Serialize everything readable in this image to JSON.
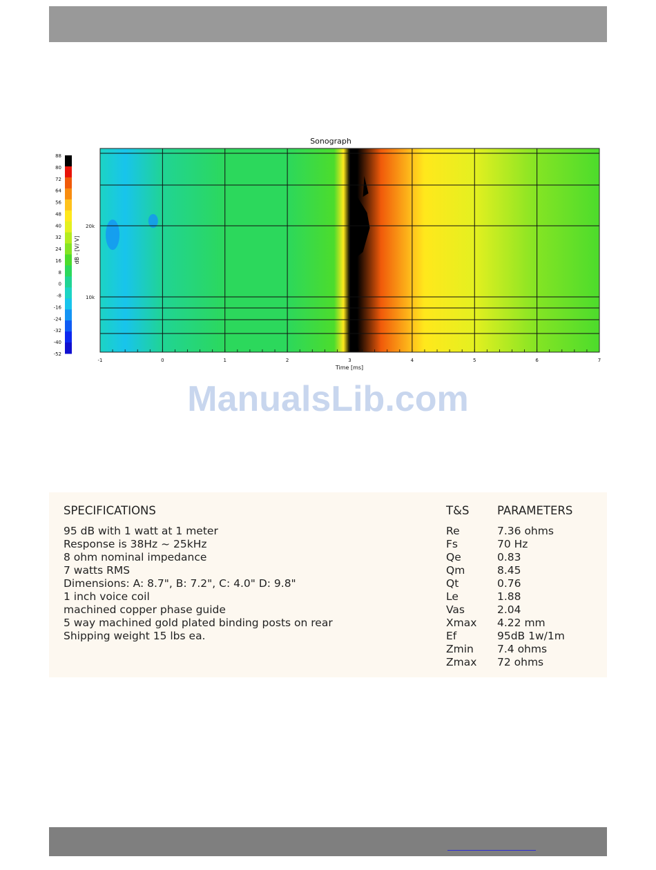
{
  "page": {
    "watermark": "ManualsLib.com"
  },
  "chart_data": {
    "type": "heatmap",
    "title": "Sonograph",
    "xlabel": "Time [ms]",
    "ylabel": "dB - [V/ V]",
    "xlim": [
      -1,
      7
    ],
    "x_ticks": [
      "-1",
      "0",
      "1",
      "2",
      "3",
      "4",
      "5",
      "6",
      "7"
    ],
    "y_ticks": [
      "20k",
      "10k"
    ],
    "colorbar_ticks": [
      "88",
      "80",
      "72",
      "64",
      "56",
      "48",
      "40",
      "32",
      "24",
      "16",
      "8",
      "0",
      "-8",
      "-16",
      "-24",
      "-32",
      "-40",
      "-52"
    ],
    "colorbar_colors": [
      "#000000",
      "#e8140a",
      "#f05a0a",
      "#f88c10",
      "#ffc21c",
      "#ffe81c",
      "#e4f020",
      "#b4ec20",
      "#84e424",
      "#4cdc2c",
      "#2cd85c",
      "#20d494",
      "#1cd4c4",
      "#18c4ec",
      "#1494f4",
      "#105cf4",
      "#0c28f0",
      "#1010d0"
    ],
    "colorscale": [
      "#000000",
      "#e8140a",
      "#f8a010",
      "#ffe81c",
      "#a8ec20",
      "#40dc2c",
      "#20d4a0",
      "#18c4ec",
      "#1470f4"
    ],
    "time_profile": [
      {
        "t": -1.0,
        "v": -14
      },
      {
        "t": -0.6,
        "v": -18
      },
      {
        "t": 0.0,
        "v": -8
      },
      {
        "t": 1.0,
        "v": 2
      },
      {
        "t": 2.0,
        "v": 6
      },
      {
        "t": 2.75,
        "v": 10
      },
      {
        "t": 2.9,
        "v": 40
      },
      {
        "t": 3.0,
        "v": 88
      },
      {
        "t": 3.12,
        "v": 84
      },
      {
        "t": 3.5,
        "v": 66
      },
      {
        "t": 4.0,
        "v": 52
      },
      {
        "t": 4.2,
        "v": 42
      },
      {
        "t": 5.0,
        "v": 32
      },
      {
        "t": 6.0,
        "v": 18
      },
      {
        "t": 7.0,
        "v": 8
      }
    ]
  },
  "specs": {
    "heading": "SPECIFICATIONS",
    "items": [
      "95 dB with 1 watt at 1 meter",
      "Response is 38Hz ~ 25kHz",
      "8 ohm nominal impedance",
      "7 watts RMS",
      "Dimensions: A: 8.7\", B: 7.2\", C: 4.0\"  D: 9.8\"",
      "1 inch voice coil",
      "machined copper phase guide",
      "5 way machined gold plated binding posts on rear",
      "Shipping weight 15 lbs ea."
    ]
  },
  "parameters": {
    "ts_heading": "T&S",
    "heading": "PARAMETERS",
    "rows": [
      {
        "name": "Re",
        "value": "7.36 ohms"
      },
      {
        "name": "Fs",
        "value": "70 Hz"
      },
      {
        "name": "Qe",
        "value": "0.83"
      },
      {
        "name": "Qm",
        "value": "8.45"
      },
      {
        "name": "Qt",
        "value": "0.76"
      },
      {
        "name": "Le",
        "value": "1.88"
      },
      {
        "name": "Vas",
        "value": "2.04"
      },
      {
        "name": "Xmax",
        "value": "4.22 mm"
      },
      {
        "name": "Ef",
        "value": "95dB 1w/1m"
      },
      {
        "name": "Zmin",
        "value": "7.4 ohms"
      },
      {
        "name": "Zmax",
        "value": "72 ohms"
      }
    ]
  }
}
